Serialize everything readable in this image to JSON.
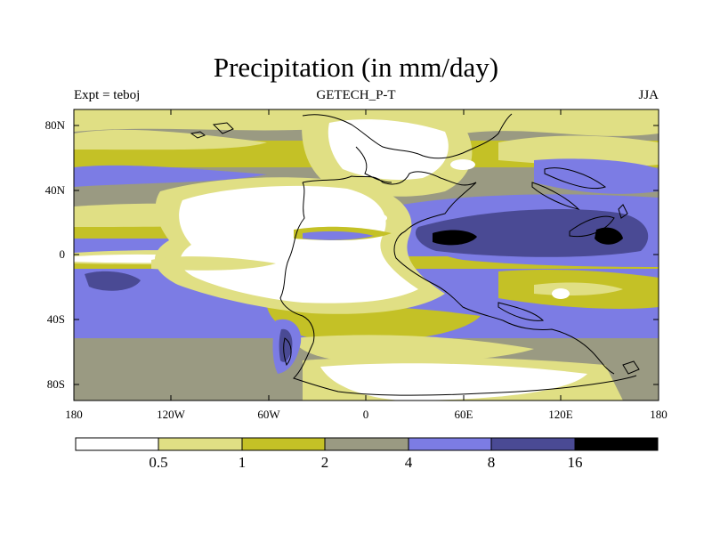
{
  "header": {
    "title": "Precipitation (in mm/day)",
    "left_label": "Expt = teboj",
    "center_label": "GETECH_P-T",
    "right_label": "JJA"
  },
  "axes": {
    "y_ticks": [
      "80N",
      "40N",
      "0",
      "40S",
      "80S"
    ],
    "x_ticks": [
      "180",
      "120W",
      "60W",
      "0",
      "60E",
      "120E",
      "180"
    ]
  },
  "colorbar": {
    "labels": [
      "0.5",
      "1",
      "2",
      "4",
      "8",
      "16"
    ],
    "colors": [
      "#ffffff",
      "#e0df84",
      "#c4c126",
      "#9a9a82",
      "#7c7ce4",
      "#4a4a94",
      "#000000"
    ]
  },
  "map_colors": {
    "dry": "#ffffff",
    "light": "#e0df84",
    "medium": "#c4c126",
    "moderate": "#9a9a82",
    "wet": "#7c7ce4",
    "very_wet": "#4a4a94",
    "extreme": "#000000",
    "coast": "#000000"
  }
}
